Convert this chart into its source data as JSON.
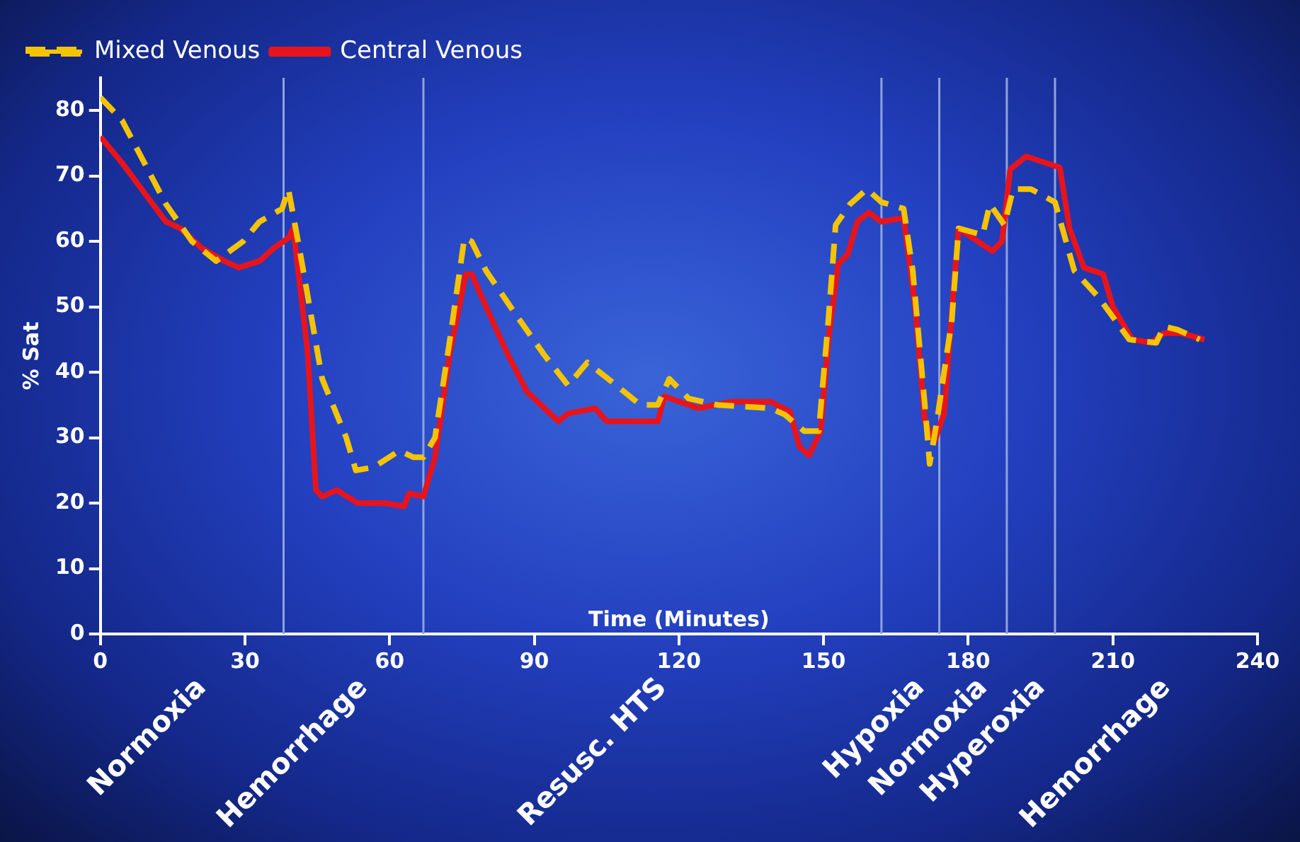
{
  "chart_data": {
    "type": "line",
    "xlabel": "Time (Minutes)",
    "ylabel": "% Sat",
    "xlim": [
      0,
      240
    ],
    "xticks": [
      0,
      30,
      60,
      90,
      120,
      150,
      180,
      210,
      240
    ],
    "ylim": [
      0,
      85
    ],
    "yticks": [
      0,
      10,
      20,
      30,
      40,
      50,
      60,
      70,
      80
    ],
    "grid": false,
    "legend": "top left",
    "marker": "none",
    "series": [
      {
        "name": "Mixed Venous",
        "color": "#f5c400",
        "line_style": "dashed",
        "x": [
          0,
          4.5,
          13.6,
          19,
          24,
          29.6,
          33,
          37.7,
          39,
          41.5,
          46,
          51,
          53,
          56.7,
          62,
          65,
          67,
          69.4,
          72.5,
          75.5,
          77,
          80,
          86,
          92,
          97,
          101,
          107,
          112,
          115.6,
          118,
          122,
          128,
          139,
          142,
          146,
          149,
          151,
          152.5,
          155.5,
          159,
          162,
          166.6,
          168.5,
          171,
          172,
          173.5,
          176.6,
          178,
          183,
          184.5,
          187.5,
          189.3,
          193,
          198,
          202,
          207,
          213.4,
          219,
          220.6,
          223.4,
          228
        ],
        "values": [
          82,
          78.5,
          65.7,
          60,
          57,
          60,
          63,
          65,
          68,
          58,
          39,
          30,
          25,
          25.5,
          28,
          27,
          27,
          30,
          45,
          60.5,
          60,
          55.5,
          49,
          42.7,
          38,
          41.5,
          38,
          35,
          35,
          39,
          36,
          35,
          34.5,
          33.5,
          31,
          31,
          48,
          62.5,
          65.7,
          68,
          66,
          65,
          55.5,
          35,
          26,
          32.5,
          48,
          62,
          61,
          65.7,
          62.5,
          68,
          68,
          66,
          55.5,
          51.5,
          45,
          44.5,
          47,
          46.5,
          45
        ]
      },
      {
        "name": "Central Venous",
        "color": "#e8141c",
        "line_style": "solid",
        "x": [
          0,
          4.5,
          13.6,
          16.6,
          21,
          25.7,
          28.7,
          33,
          36,
          39,
          40,
          43,
          44.7,
          46,
          49,
          53.4,
          59,
          63,
          64,
          67,
          69.4,
          72.5,
          75.8,
          77,
          80.6,
          84.5,
          88.5,
          95,
          97,
          102.6,
          105,
          115.6,
          117,
          124,
          131,
          139,
          143,
          145,
          147,
          149.4,
          151,
          153,
          155,
          157,
          159.4,
          162,
          166.6,
          169,
          171,
          173,
          175,
          177,
          178,
          182,
          185,
          187,
          188.7,
          192,
          199,
          201,
          204,
          208,
          210,
          214,
          218,
          220.6,
          224,
          229
        ],
        "values": [
          76,
          72,
          63,
          62,
          59,
          57,
          56,
          57,
          59,
          60.5,
          62,
          43,
          22,
          21,
          22,
          20,
          20,
          19.5,
          21.5,
          21,
          27,
          43,
          55,
          55,
          49,
          42.7,
          37,
          32.5,
          33.7,
          34.5,
          32.5,
          32.5,
          36.3,
          34.5,
          35.5,
          35.5,
          34,
          28.6,
          27.3,
          31,
          45,
          56.5,
          58,
          63,
          64.4,
          63,
          63.6,
          50,
          32.5,
          29.4,
          33.7,
          53,
          62,
          60,
          58.5,
          60,
          71,
          73,
          71.3,
          62,
          56,
          55,
          50,
          45,
          44.5,
          46,
          46,
          45
        ]
      }
    ],
    "ref_lines": [
      {
        "axis": "x",
        "value": 38,
        "color": "#8ea4dc"
      },
      {
        "axis": "x",
        "value": 67,
        "color": "#8ea4dc"
      },
      {
        "axis": "x",
        "value": 162,
        "color": "#8ea4dc"
      },
      {
        "axis": "x",
        "value": 174,
        "color": "#8ea4dc"
      },
      {
        "axis": "x",
        "value": 188,
        "color": "#8ea4dc"
      },
      {
        "axis": "x",
        "value": 198,
        "color": "#8ea4dc"
      }
    ],
    "annotations": [
      "Normoxia",
      "Hemorrhage",
      "Resusc. HTS",
      "Hypoxia",
      "Normoxia",
      "Hyperoxia",
      "Hemorrhage"
    ]
  }
}
